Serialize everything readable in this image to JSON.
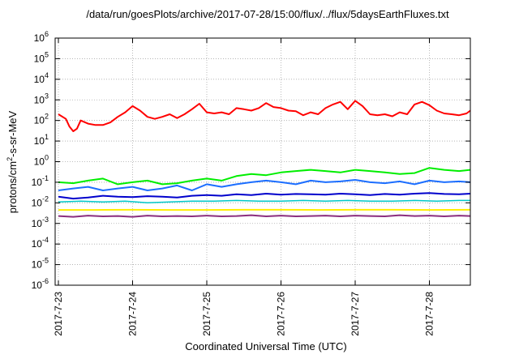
{
  "chart_data": {
    "type": "line",
    "title": "/data/run/goesPlots/archive/2017-07-28/15:00/flux/../flux/5daysEarthFluxes.txt",
    "xlabel": "Coordinated Universal Time (UTC)",
    "ylabel_main": "protons/cm",
    "ylabel_sup": "2",
    "ylabel_rest": "-s-sr-MeV",
    "ylabel": "protons/cm2-s-sr-MeV",
    "yscale": "log",
    "ylim_exponents": [
      -6,
      6
    ],
    "ytick_labels": [
      {
        "base": "10",
        "exp": "6"
      },
      {
        "base": "10",
        "exp": "5"
      },
      {
        "base": "10",
        "exp": "4"
      },
      {
        "base": "10",
        "exp": "3"
      },
      {
        "base": "10",
        "exp": "2"
      },
      {
        "base": "10",
        "exp": "1"
      },
      {
        "base": "10",
        "exp": "0"
      },
      {
        "base": "10",
        "exp": "-1"
      },
      {
        "base": "10",
        "exp": "-2"
      },
      {
        "base": "10",
        "exp": "-3"
      },
      {
        "base": "10",
        "exp": "-4"
      },
      {
        "base": "10",
        "exp": "-5"
      },
      {
        "base": "10",
        "exp": "-6"
      }
    ],
    "x_dates": [
      "2017-7-23",
      "2017-7-24",
      "2017-7-25",
      "2017-7-26",
      "2017-7-27",
      "2017-7-28"
    ],
    "xlim_days": [
      0,
      5.6
    ],
    "grid": true,
    "series": [
      {
        "color": "#ff0000",
        "linewidth": 2,
        "x": [
          0,
          0.1,
          0.15,
          0.2,
          0.25,
          0.3,
          0.4,
          0.5,
          0.6,
          0.7,
          0.8,
          0.9,
          1.0,
          1.1,
          1.2,
          1.3,
          1.4,
          1.5,
          1.6,
          1.7,
          1.8,
          1.9,
          2.0,
          2.1,
          2.2,
          2.3,
          2.4,
          2.5,
          2.6,
          2.7,
          2.8,
          2.9,
          3.0,
          3.1,
          3.2,
          3.3,
          3.4,
          3.5,
          3.6,
          3.7,
          3.8,
          3.9,
          4.0,
          4.1,
          4.2,
          4.3,
          4.4,
          4.5,
          4.6,
          4.7,
          4.8,
          4.9,
          5.0,
          5.1,
          5.2,
          5.3,
          5.4,
          5.5,
          5.6
        ],
        "y": [
          200,
          120,
          50,
          30,
          40,
          100,
          70,
          60,
          60,
          80,
          150,
          250,
          500,
          300,
          150,
          120,
          150,
          200,
          130,
          200,
          350,
          650,
          250,
          220,
          250,
          200,
          400,
          350,
          300,
          400,
          700,
          450,
          400,
          300,
          280,
          180,
          250,
          200,
          400,
          600,
          800,
          350,
          900,
          500,
          200,
          180,
          200,
          160,
          250,
          200,
          600,
          800,
          550,
          300,
          220,
          200,
          180,
          220,
          300
        ]
      },
      {
        "color": "#00ee00",
        "linewidth": 2,
        "x": [
          0,
          0.2,
          0.4,
          0.6,
          0.8,
          1.0,
          1.2,
          1.4,
          1.6,
          1.8,
          2.0,
          2.2,
          2.4,
          2.6,
          2.8,
          3.0,
          3.2,
          3.4,
          3.6,
          3.8,
          4.0,
          4.2,
          4.4,
          4.6,
          4.8,
          5.0,
          5.2,
          5.4,
          5.6
        ],
        "y": [
          0.1,
          0.09,
          0.12,
          0.15,
          0.08,
          0.1,
          0.12,
          0.08,
          0.09,
          0.12,
          0.15,
          0.12,
          0.2,
          0.25,
          0.22,
          0.3,
          0.35,
          0.4,
          0.35,
          0.3,
          0.4,
          0.35,
          0.3,
          0.25,
          0.28,
          0.5,
          0.4,
          0.35,
          0.4
        ]
      },
      {
        "color": "#1c6eff",
        "linewidth": 2,
        "x": [
          0,
          0.2,
          0.4,
          0.6,
          0.8,
          1.0,
          1.2,
          1.4,
          1.6,
          1.8,
          2.0,
          2.2,
          2.4,
          2.6,
          2.8,
          3.0,
          3.2,
          3.4,
          3.6,
          3.8,
          4.0,
          4.2,
          4.4,
          4.6,
          4.8,
          5.0,
          5.2,
          5.4,
          5.6
        ],
        "y": [
          0.04,
          0.05,
          0.06,
          0.04,
          0.05,
          0.06,
          0.04,
          0.05,
          0.07,
          0.04,
          0.08,
          0.06,
          0.08,
          0.1,
          0.12,
          0.1,
          0.08,
          0.12,
          0.1,
          0.11,
          0.13,
          0.1,
          0.09,
          0.11,
          0.08,
          0.12,
          0.1,
          0.11,
          0.1
        ]
      },
      {
        "color": "#0000cc",
        "linewidth": 2,
        "x": [
          0,
          0.2,
          0.4,
          0.6,
          0.8,
          1.0,
          1.2,
          1.4,
          1.6,
          1.8,
          2.0,
          2.2,
          2.4,
          2.6,
          2.8,
          3.0,
          3.2,
          3.4,
          3.6,
          3.8,
          4.0,
          4.2,
          4.4,
          4.6,
          4.8,
          5.0,
          5.2,
          5.4,
          5.6
        ],
        "y": [
          0.02,
          0.016,
          0.018,
          0.022,
          0.02,
          0.019,
          0.021,
          0.02,
          0.018,
          0.022,
          0.024,
          0.022,
          0.026,
          0.024,
          0.028,
          0.025,
          0.027,
          0.026,
          0.025,
          0.028,
          0.026,
          0.024,
          0.027,
          0.025,
          0.028,
          0.03,
          0.027,
          0.026,
          0.028
        ]
      },
      {
        "color": "#00c8c8",
        "linewidth": 1.5,
        "x": [
          0,
          0.3,
          0.6,
          0.9,
          1.2,
          1.5,
          1.8,
          2.1,
          2.4,
          2.7,
          3.0,
          3.3,
          3.6,
          3.9,
          4.2,
          4.5,
          4.8,
          5.1,
          5.4,
          5.6
        ],
        "y": [
          0.011,
          0.012,
          0.011,
          0.012,
          0.01,
          0.011,
          0.012,
          0.012,
          0.013,
          0.012,
          0.012,
          0.013,
          0.012,
          0.013,
          0.012,
          0.012,
          0.013,
          0.012,
          0.013,
          0.013
        ]
      },
      {
        "color": "#ffee00",
        "linewidth": 2,
        "x": [
          0,
          0.5,
          1.0,
          1.5,
          2.0,
          2.5,
          3.0,
          3.5,
          4.0,
          4.5,
          5.0,
          5.6
        ],
        "y": [
          0.0045,
          0.0045,
          0.0046,
          0.0045,
          0.0045,
          0.0046,
          0.0046,
          0.0045,
          0.0046,
          0.0046,
          0.0045,
          0.0046
        ]
      },
      {
        "color": "#8b2e7e",
        "linewidth": 2,
        "x": [
          0,
          0.2,
          0.4,
          0.6,
          0.8,
          1.0,
          1.2,
          1.4,
          1.6,
          1.8,
          2.0,
          2.2,
          2.4,
          2.6,
          2.8,
          3.0,
          3.2,
          3.4,
          3.6,
          3.8,
          4.0,
          4.2,
          4.4,
          4.6,
          4.8,
          5.0,
          5.2,
          5.4,
          5.6
        ],
        "y": [
          0.0023,
          0.0021,
          0.0024,
          0.0022,
          0.0023,
          0.0021,
          0.0024,
          0.0022,
          0.0023,
          0.0022,
          0.0024,
          0.0022,
          0.0023,
          0.0025,
          0.0022,
          0.0024,
          0.0022,
          0.0023,
          0.0024,
          0.0022,
          0.0024,
          0.0023,
          0.0022,
          0.0025,
          0.0023,
          0.0024,
          0.0022,
          0.0024,
          0.0023
        ]
      }
    ]
  }
}
